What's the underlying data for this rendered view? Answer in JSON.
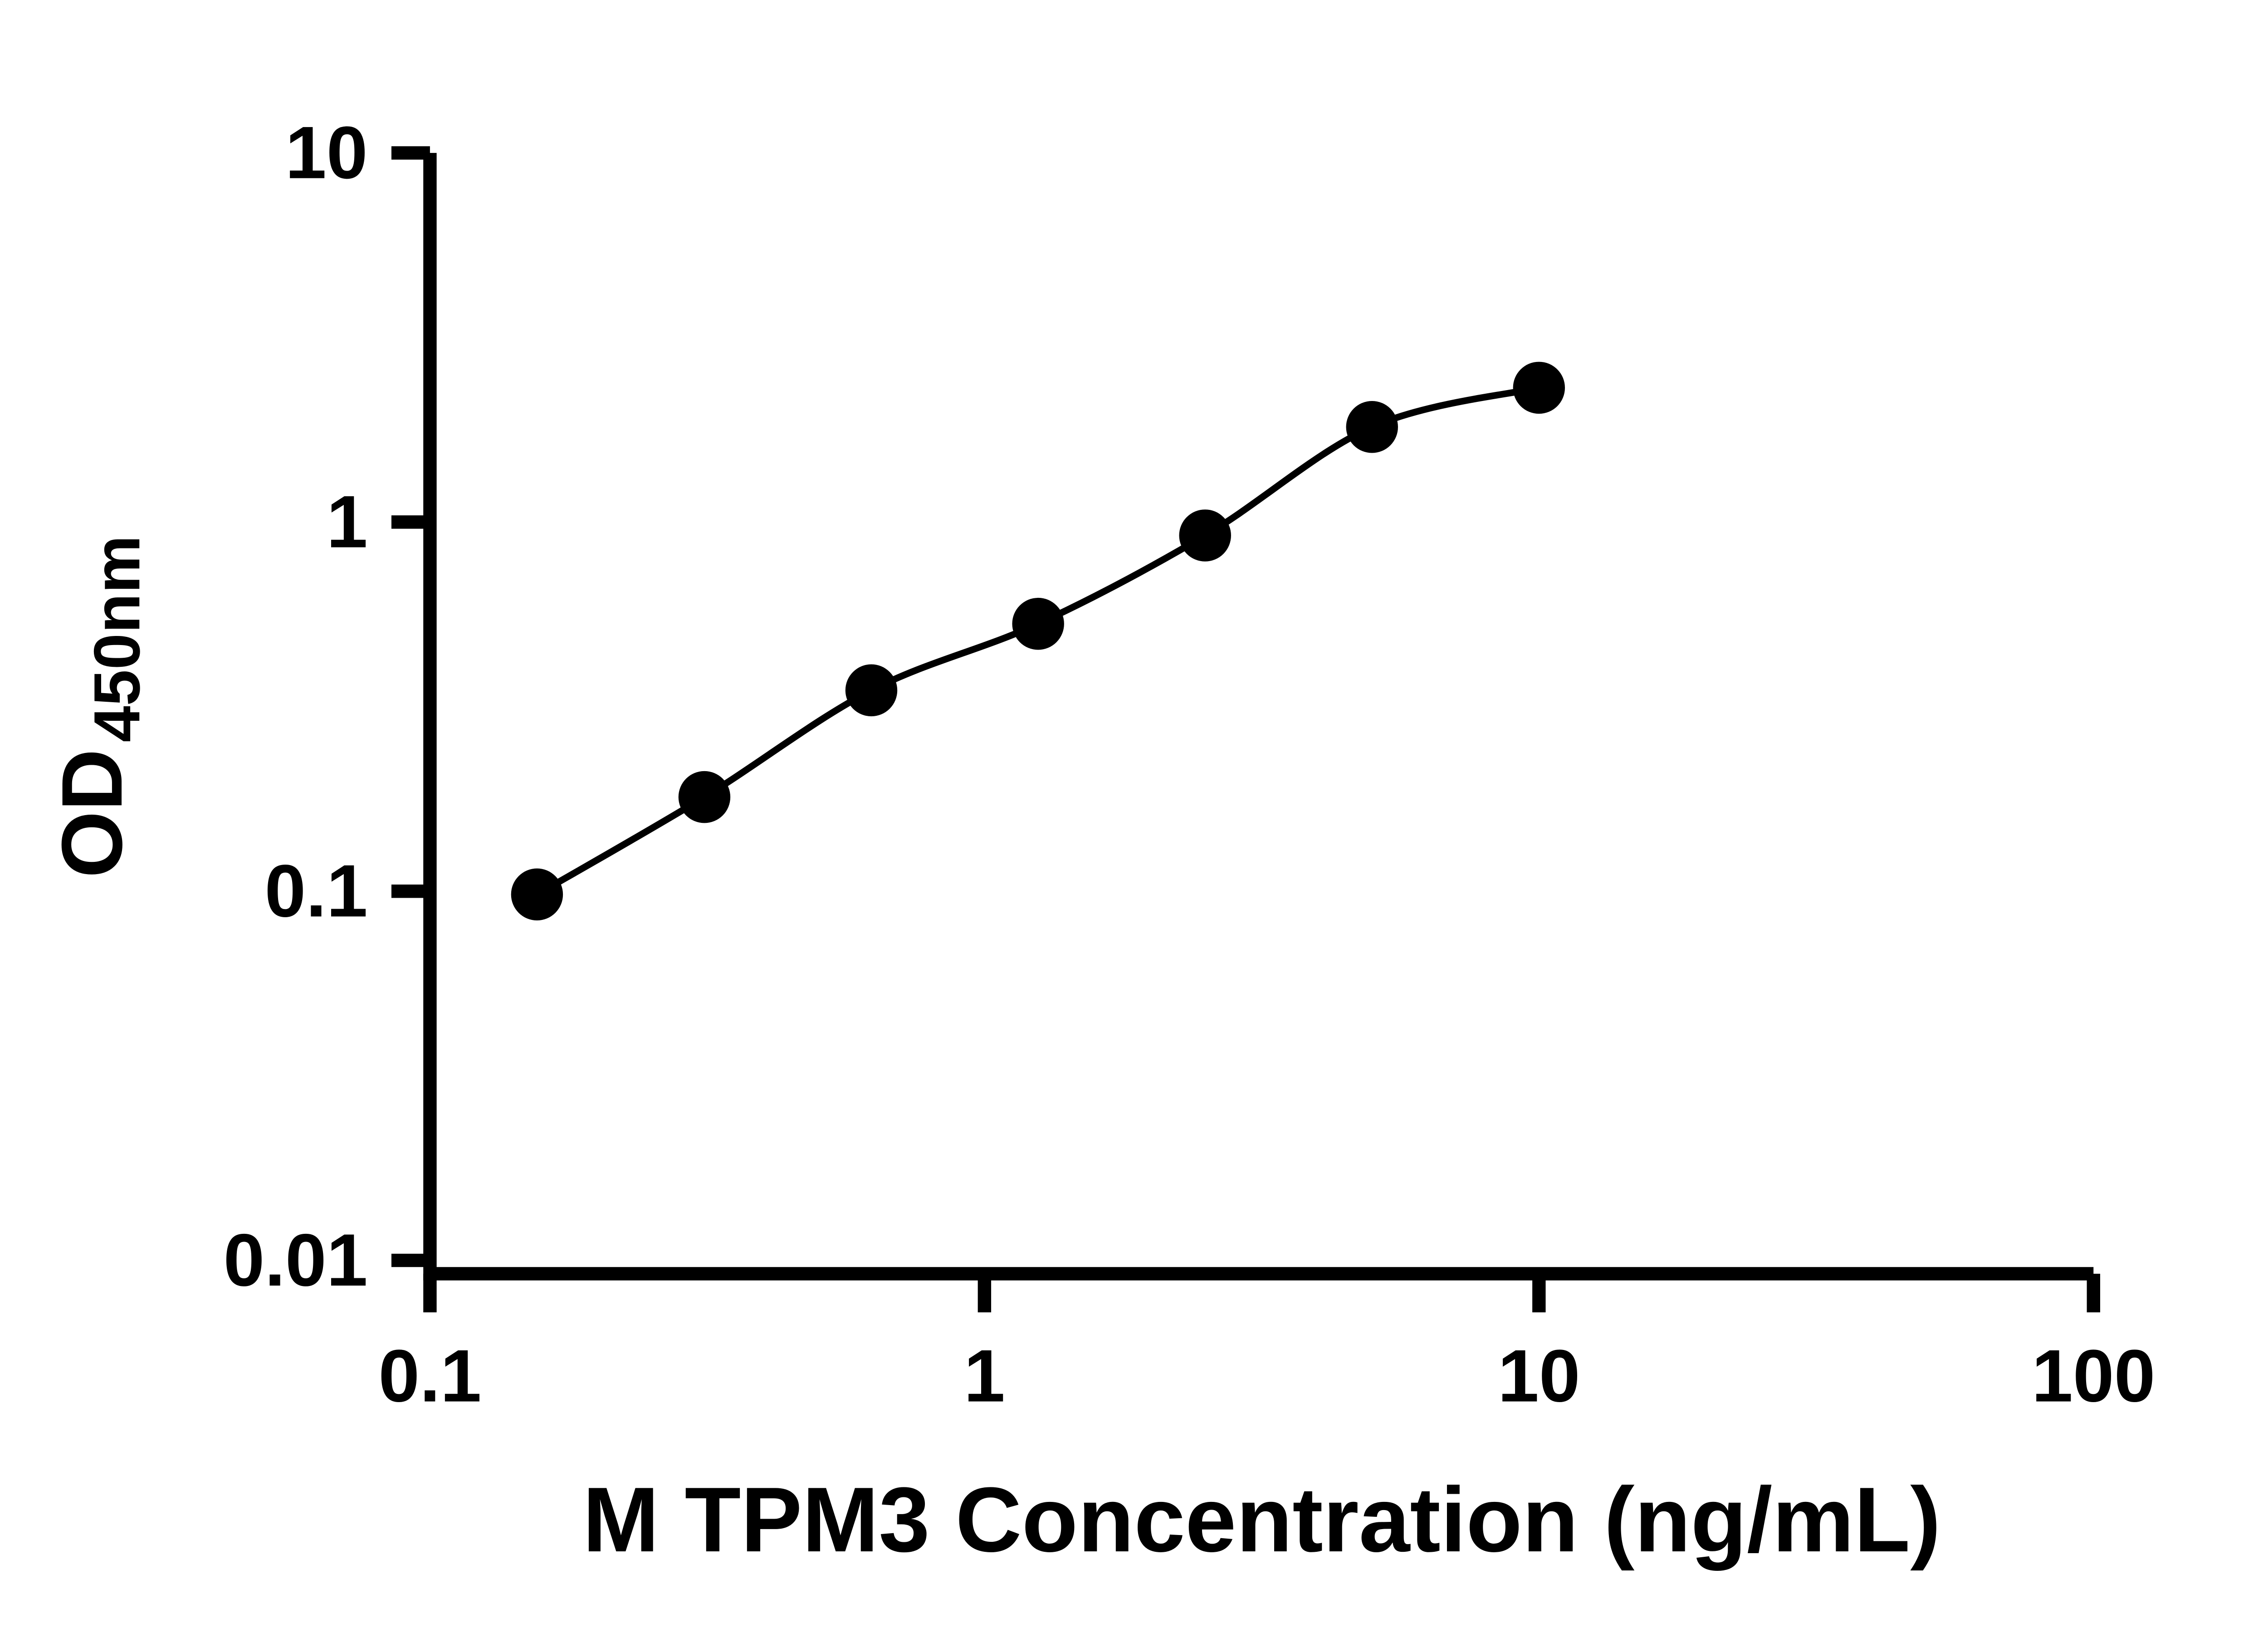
{
  "figure": {
    "background": "#ffffff",
    "ink_color": "#000000"
  },
  "chart_data": {
    "type": "scatter",
    "title": "",
    "xlabel": "M TPM3 Concentration (ng/mL)",
    "ylabel_main": "OD",
    "ylabel_sub": "450nm",
    "x_scale": "log10",
    "y_scale": "log10",
    "xlim": [
      0.1,
      100
    ],
    "ylim": [
      0.01,
      10
    ],
    "grid": false,
    "legend": false,
    "x_ticks": [
      {
        "value": 0.1,
        "label": "0.1"
      },
      {
        "value": 1,
        "label": "1"
      },
      {
        "value": 10,
        "label": "10"
      },
      {
        "value": 100,
        "label": "100"
      }
    ],
    "y_ticks": [
      {
        "value": 10,
        "label": "10"
      },
      {
        "value": 1,
        "label": "1"
      },
      {
        "value": 0.1,
        "label": "0.1"
      },
      {
        "value": 0.01,
        "label": "0.01"
      }
    ],
    "series": [
      {
        "marker": "filled-circle",
        "fit": "smooth-sigmoid-curve",
        "x": [
          0.156,
          0.3125,
          0.625,
          1.25,
          2.5,
          5,
          10
        ],
        "y": [
          0.098,
          0.18,
          0.35,
          0.53,
          0.92,
          1.81,
          2.31
        ]
      }
    ]
  }
}
